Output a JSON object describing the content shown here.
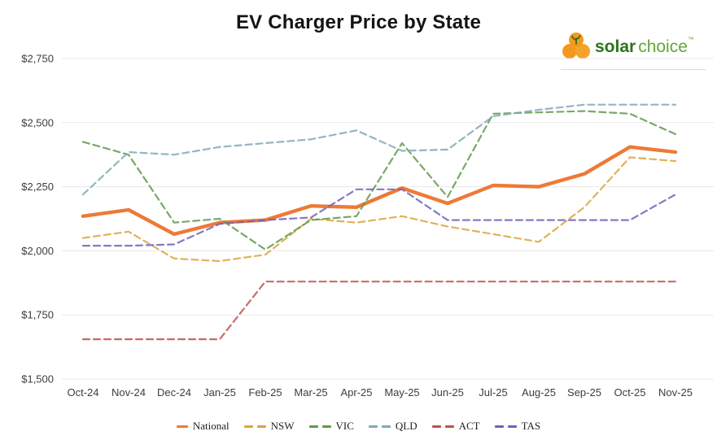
{
  "title": "EV Charger Price by State",
  "logo": {
    "brand_bold": "solar",
    "brand_light": "choice",
    "tm": "™",
    "icon_color": "#F39A1E",
    "leaf_color": "#2e6b1a",
    "bold_color": "#2b7519",
    "light_color": "#64a637"
  },
  "y_axis": {
    "tick_labels": [
      "$2,750",
      "$2,500",
      "$2,250",
      "$2,000",
      "$1,750",
      "$1,500"
    ],
    "min": 1500,
    "max": 2750,
    "step": 250
  },
  "x_axis": {
    "tick_labels": [
      "Oct-24",
      "Nov-24",
      "Dec-24",
      "Jan-25",
      "Feb-25",
      "Mar-25",
      "Apr-25",
      "May-25",
      "Jun-25",
      "Jul-25",
      "Aug-25",
      "Sep-25",
      "Oct-25",
      "Nov-25"
    ]
  },
  "chart_data": {
    "type": "line",
    "title": "EV Charger Price by State",
    "x": [
      "Oct-24",
      "Nov-24",
      "Dec-24",
      "Jan-25",
      "Feb-25",
      "Mar-25",
      "Apr-25",
      "May-25",
      "Jun-25",
      "Jul-25",
      "Aug-25",
      "Sep-25",
      "Oct-25",
      "Nov-25"
    ],
    "ylim": [
      1500,
      2750
    ],
    "y_tick_step": 250,
    "grid": "horizontal",
    "legend_position": "bottom",
    "series": [
      {
        "name": "National",
        "color": "#ED7A36",
        "style": "solid",
        "values": [
          2135,
          2160,
          2065,
          2110,
          2120,
          2175,
          2170,
          2245,
          2185,
          2255,
          2250,
          2300,
          2405,
          2385
        ]
      },
      {
        "name": "NSW",
        "color": "#D9A53E",
        "style": "dashed",
        "values": [
          2050,
          2075,
          1970,
          1960,
          1985,
          2125,
          2110,
          2135,
          2095,
          2065,
          2035,
          2170,
          2365,
          2350
        ]
      },
      {
        "name": "VIC",
        "color": "#5F9A4C",
        "style": "dashed",
        "values": [
          2425,
          2375,
          2110,
          2125,
          2005,
          2120,
          2135,
          2420,
          2210,
          2535,
          2540,
          2545,
          2535,
          2455
        ]
      },
      {
        "name": "QLD",
        "color": "#7FA9B5",
        "style": "dashed",
        "values": [
          2220,
          2385,
          2375,
          2405,
          2420,
          2435,
          2470,
          2390,
          2395,
          2525,
          2550,
          2570,
          2570,
          2570
        ]
      },
      {
        "name": "ACT",
        "color": "#BE524B",
        "style": "dashed",
        "values": [
          1655,
          1655,
          1655,
          1655,
          1880,
          1880,
          1880,
          1880,
          1880,
          1880,
          1880,
          1880,
          1880,
          1880
        ]
      },
      {
        "name": "TAS",
        "color": "#6E62B8",
        "style": "dashed",
        "values": [
          2020,
          2020,
          2025,
          2105,
          2120,
          2130,
          2240,
          2240,
          2120,
          2120,
          2120,
          2120,
          2120,
          2220
        ]
      }
    ]
  }
}
